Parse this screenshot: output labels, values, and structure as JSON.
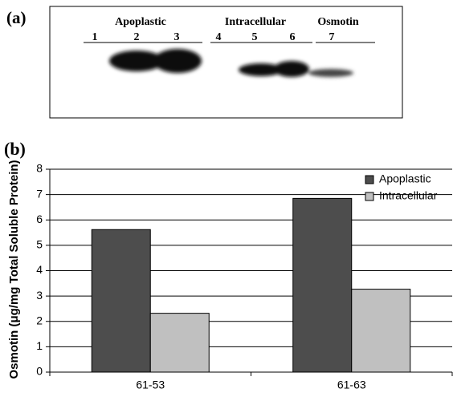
{
  "blot": {
    "label": "(a)",
    "groups": [
      "Apoplastic",
      "Intracellular",
      "Osmotin"
    ],
    "lanes": [
      "1",
      "2",
      "3",
      "4",
      "5",
      "6",
      "7"
    ]
  },
  "chart_data": {
    "type": "bar",
    "label": "(b)",
    "y_label": "Osmotin (μg/mg Total Soluble Protein)",
    "categories": [
      "61-53",
      "61-63"
    ],
    "series": [
      {
        "name": "Apoplastic",
        "color": "#4d4d4d",
        "values": [
          5.62,
          6.85
        ]
      },
      {
        "name": "Intracellular",
        "color": "#c0c0c0",
        "values": [
          2.32,
          3.27
        ]
      }
    ],
    "ylim": [
      0,
      8
    ],
    "yticks": [
      0,
      1,
      2,
      3,
      4,
      5,
      6,
      7,
      8
    ],
    "grid": true,
    "legend": "top-right"
  }
}
